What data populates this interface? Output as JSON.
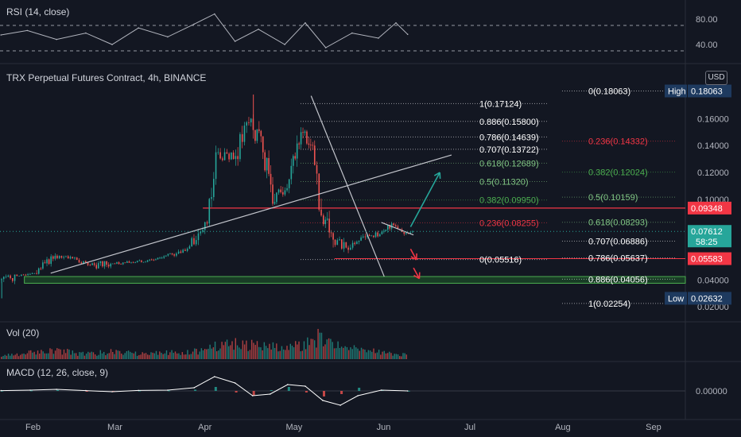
{
  "header": {
    "symbol_title": "TRX Perpetual Futures Contract, 4h, BINANCE",
    "currency": "USD",
    "rsi_label": "RSI (14, close)",
    "vol_label": "Vol (20)",
    "macd_label": "MACD (12, 26, close, 9)"
  },
  "colors": {
    "background": "#131722",
    "up": "#26a69a",
    "down": "#ef5350",
    "rsi_line": "#b2b5be",
    "macd_line": "#ffffff",
    "zone_fill": "#1f5c2a",
    "zone_border": "#4caf50",
    "resistance_line": "#f23645",
    "trend_line": "#c3c5cc",
    "arrow_up": "#26a69a",
    "arrow_down": "#f23645"
  },
  "chart_data": [
    {
      "type": "line",
      "pane": "rsi",
      "label": "RSI (14, close)",
      "ylim": [
        20,
        100
      ],
      "ticks": [
        "80.00",
        "40.00"
      ],
      "bands": [
        70,
        30
      ],
      "x": [
        "2022-01-22",
        "2022-01-31",
        "2022-02-10",
        "2022-02-20",
        "2022-03-01",
        "2022-03-10",
        "2022-03-20",
        "2022-03-29",
        "2022-04-05",
        "2022-04-12",
        "2022-04-20",
        "2022-04-29",
        "2022-05-06",
        "2022-05-13",
        "2022-05-22",
        "2022-05-31",
        "2022-06-06",
        "2022-06-10"
      ],
      "values": [
        55,
        62,
        48,
        58,
        40,
        66,
        52,
        72,
        88,
        45,
        64,
        40,
        74,
        35,
        58,
        50,
        74,
        56
      ]
    },
    {
      "type": "candlestick",
      "pane": "price",
      "title": "TRX Perpetual Futures Contract, 4h, BINANCE",
      "y_axis": "USD",
      "ylim": [
        0.0135,
        0.1895
      ],
      "yticks": [
        "0.16000",
        "0.14000",
        "0.12000",
        "0.10000",
        "0.04000",
        "0.02000"
      ],
      "xticks": [
        "Feb",
        "Mar",
        "Apr",
        "May",
        "Jun",
        "Jul",
        "Aug",
        "Sep"
      ],
      "x": [
        "2022-01-22",
        "2022-01-28",
        "2022-02-03",
        "2022-02-10",
        "2022-02-16",
        "2022-02-22",
        "2022-03-01",
        "2022-03-08",
        "2022-03-15",
        "2022-03-22",
        "2022-03-28",
        "2022-04-03",
        "2022-04-06",
        "2022-04-12",
        "2022-04-18",
        "2022-04-22",
        "2022-04-26",
        "2022-05-01",
        "2022-05-05",
        "2022-05-09",
        "2022-05-12",
        "2022-05-16",
        "2022-05-22",
        "2022-05-27",
        "2022-06-01",
        "2022-06-05",
        "2022-06-10"
      ],
      "open": [
        0.04,
        0.043,
        0.045,
        0.058,
        0.056,
        0.051,
        0.052,
        0.053,
        0.055,
        0.059,
        0.065,
        0.082,
        0.135,
        0.13,
        0.16,
        0.135,
        0.098,
        0.115,
        0.15,
        0.14,
        0.088,
        0.07,
        0.064,
        0.072,
        0.074,
        0.082,
        0.075
      ],
      "high": [
        0.044,
        0.047,
        0.062,
        0.064,
        0.059,
        0.054,
        0.056,
        0.057,
        0.06,
        0.068,
        0.09,
        0.14,
        0.145,
        0.175,
        0.178,
        0.145,
        0.125,
        0.155,
        0.1712,
        0.145,
        0.098,
        0.078,
        0.076,
        0.08,
        0.086,
        0.084,
        0.079
      ],
      "low": [
        0.0263,
        0.041,
        0.044,
        0.054,
        0.05,
        0.038,
        0.05,
        0.051,
        0.053,
        0.057,
        0.062,
        0.08,
        0.12,
        0.125,
        0.13,
        0.095,
        0.094,
        0.11,
        0.135,
        0.085,
        0.056,
        0.0552,
        0.06,
        0.068,
        0.07,
        0.072,
        0.07
      ],
      "close": [
        0.043,
        0.045,
        0.058,
        0.056,
        0.051,
        0.052,
        0.053,
        0.055,
        0.059,
        0.065,
        0.082,
        0.135,
        0.13,
        0.16,
        0.135,
        0.098,
        0.115,
        0.15,
        0.14,
        0.088,
        0.07,
        0.064,
        0.072,
        0.074,
        0.082,
        0.075,
        0.0761
      ]
    },
    {
      "type": "bar",
      "pane": "volume",
      "label": "Vol (20)",
      "x": [
        "2022-01-22",
        "2022-02-01",
        "2022-02-10",
        "2022-02-20",
        "2022-03-01",
        "2022-03-10",
        "2022-03-20",
        "2022-03-29",
        "2022-04-05",
        "2022-04-12",
        "2022-04-20",
        "2022-04-29",
        "2022-05-06",
        "2022-05-12",
        "2022-05-17",
        "2022-05-25",
        "2022-06-03",
        "2022-06-10"
      ],
      "values": [
        0.15,
        0.25,
        0.35,
        0.2,
        0.3,
        0.2,
        0.25,
        0.3,
        0.55,
        0.75,
        0.5,
        0.45,
        0.6,
        1.0,
        0.55,
        0.4,
        0.25,
        0.15
      ],
      "colors": [
        "up",
        "up",
        "down",
        "up",
        "down",
        "up",
        "up",
        "up",
        "up",
        "down",
        "down",
        "up",
        "down",
        "down",
        "up",
        "down",
        "up",
        "up"
      ]
    },
    {
      "type": "line",
      "pane": "macd",
      "label": "MACD (12, 26, close, 9)",
      "ytick": "0.00000",
      "ylim": [
        -1,
        1
      ],
      "x": [
        "2022-01-22",
        "2022-02-01",
        "2022-02-10",
        "2022-02-20",
        "2022-03-01",
        "2022-03-10",
        "2022-03-20",
        "2022-03-29",
        "2022-04-05",
        "2022-04-12",
        "2022-04-18",
        "2022-04-24",
        "2022-04-30",
        "2022-05-06",
        "2022-05-12",
        "2022-05-18",
        "2022-05-24",
        "2022-06-01",
        "2022-06-10"
      ],
      "series": [
        {
          "role": "macd",
          "values": [
            0.02,
            0.05,
            0.1,
            0.02,
            -0.05,
            0.03,
            0.05,
            0.2,
            0.9,
            0.5,
            -0.3,
            -0.2,
            0.4,
            0.3,
            -0.6,
            -0.9,
            -0.3,
            0.05,
            0.0
          ]
        },
        {
          "role": "histogram",
          "values": [
            0.01,
            0.03,
            0.06,
            -0.04,
            -0.05,
            0.02,
            0.03,
            0.08,
            0.25,
            -0.1,
            -0.3,
            0.05,
            0.25,
            -0.1,
            -0.35,
            -0.2,
            0.2,
            0.05,
            0.01
          ]
        }
      ]
    }
  ],
  "fib_left": {
    "levels": [
      {
        "label": "1(0.17124)",
        "value": 0.17124,
        "color": "#ffffff"
      },
      {
        "label": "0.886(0.15800)",
        "value": 0.158,
        "color": "#ffffff"
      },
      {
        "label": "0.786(0.14639)",
        "value": 0.14639,
        "color": "#ffffff"
      },
      {
        "label": "0.707(0.13722)",
        "value": 0.13722,
        "color": "#ffffff"
      },
      {
        "label": "0.618(0.12689)",
        "value": 0.12689,
        "color": "#81c784"
      },
      {
        "label": "0.5(0.11320)",
        "value": 0.1132,
        "color": "#81c784"
      },
      {
        "label": "0.382(0.09950)",
        "value": 0.0995,
        "color": "#4caf50"
      },
      {
        "label": "0.236(0.08255)",
        "value": 0.08255,
        "color": "#f23645"
      },
      {
        "label": "0(0.05516)",
        "value": 0.05516,
        "color": "#ffffff"
      }
    ]
  },
  "fib_right": {
    "levels": [
      {
        "label": "0(0.18063)",
        "value": 0.18063,
        "color": "#ffffff"
      },
      {
        "label": "0.236(0.14332)",
        "value": 0.14332,
        "color": "#f23645"
      },
      {
        "label": "0.382(0.12024)",
        "value": 0.12024,
        "color": "#4caf50"
      },
      {
        "label": "0.5(0.10159)",
        "value": 0.10159,
        "color": "#81c784"
      },
      {
        "label": "0.618(0.08293)",
        "value": 0.08293,
        "color": "#81c784"
      },
      {
        "label": "0.707(0.06886)",
        "value": 0.06886,
        "color": "#ffffff"
      },
      {
        "label": "0.786(0.05637)",
        "value": 0.05637,
        "color": "#ffffff"
      },
      {
        "label": "0.886(0.04056)",
        "value": 0.04056,
        "color": "#ffffff"
      },
      {
        "label": "1(0.02254)",
        "value": 0.02254,
        "color": "#ffffff"
      }
    ]
  },
  "drawings": {
    "support_zone": {
      "from": "2022-01-30",
      "to": "2022-09-30",
      "low": 0.0375,
      "high": 0.0425
    },
    "resistance_line": {
      "from": "2022-04-01",
      "to": "2022-09-30",
      "value": 0.09348
    },
    "red_line": {
      "from": "2022-05-16",
      "to": "2022-09-30",
      "value": 0.05583
    },
    "ascending_trendline": {
      "from_date": "2022-02-08",
      "from_value": 0.045,
      "to_date": "2022-06-25",
      "to_value": 0.133
    },
    "descending_trendline": {
      "from_date": "2022-05-08",
      "from_value": 0.177,
      "to_date": "2022-06-02",
      "to_value": 0.0425
    },
    "triangle_top": {
      "from_date": "2022-06-01",
      "from_value": 0.0828,
      "to_date": "2022-06-12",
      "to_value": 0.0735
    },
    "arrow_up": {
      "from_date": "2022-06-11",
      "from_value": 0.0795,
      "to_date": "2022-06-21",
      "to_value": 0.12
    },
    "arrow_down_1": {
      "from_date": "2022-06-11",
      "from_value": 0.063,
      "to_date": "2022-06-13",
      "to_value": 0.055
    },
    "arrow_down_2": {
      "from_date": "2022-06-12",
      "from_value": 0.049,
      "to_date": "2022-06-14",
      "to_value": 0.041
    }
  },
  "axis_badges": {
    "high": {
      "label": "High",
      "value": "0.18063",
      "price": 0.18063
    },
    "low": {
      "label": "Low",
      "value": "0.02632",
      "price": 0.02632
    },
    "last_price": {
      "value": "0.07612",
      "countdown": "58:25",
      "price": 0.07612
    },
    "resistance": {
      "value": "0.09348",
      "price": 0.09348
    },
    "red_level": {
      "value": "0.05583",
      "price": 0.05583
    }
  }
}
